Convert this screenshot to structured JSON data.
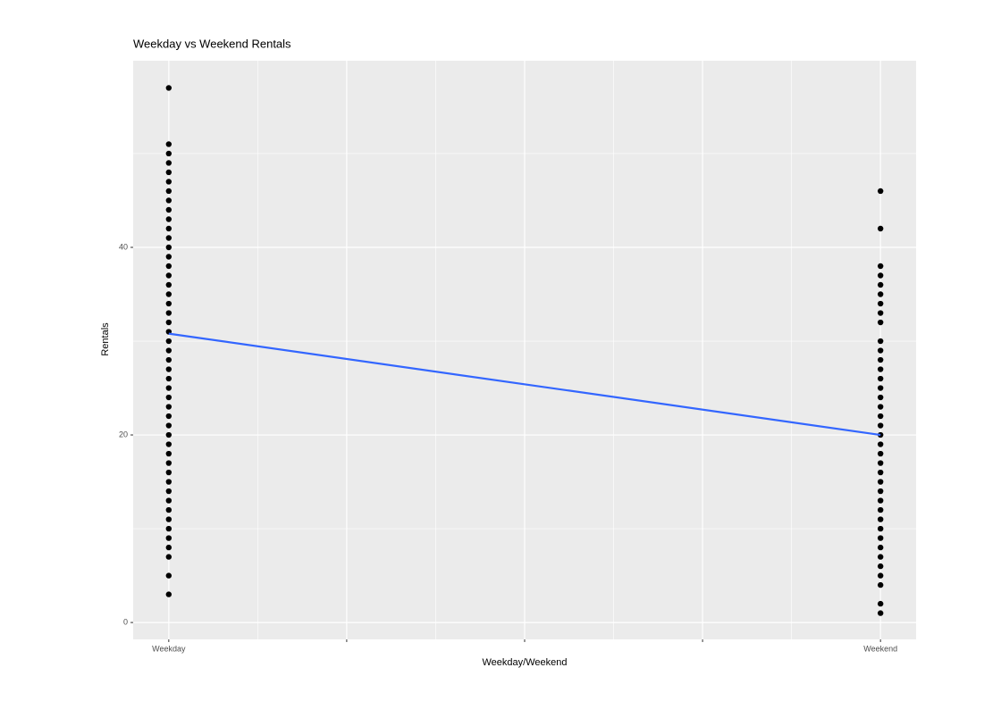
{
  "chart_data": {
    "type": "scatter",
    "title": "Weekday vs Weekend Rentals",
    "x_label": "Weekday/Weekend",
    "y_label": "Rentals",
    "xlim": [
      -0.05,
      1.05
    ],
    "ylim": [
      -1.8,
      59.9
    ],
    "xticks": [
      {
        "value": 0,
        "label": "Weekday"
      },
      {
        "value": 0.25,
        "label": null
      },
      {
        "value": 0.5,
        "label": null
      },
      {
        "value": 0.75,
        "label": null
      },
      {
        "value": 1,
        "label": "Weekend"
      }
    ],
    "yticks": [
      0,
      20,
      40
    ],
    "grid": true,
    "series": [
      {
        "color": "#000000",
        "x": [
          0,
          0,
          0,
          0,
          0,
          0,
          0,
          0,
          0,
          0,
          0,
          0,
          0,
          0,
          0,
          0,
          0,
          0,
          0,
          0,
          0,
          0,
          0,
          0,
          0,
          0,
          0,
          0,
          0,
          0,
          0,
          0,
          0,
          0,
          0,
          0,
          0,
          0,
          0,
          0,
          0,
          0,
          0,
          0,
          0,
          0,
          0,
          0
        ],
        "values": [
          3,
          5,
          7,
          8,
          9,
          10,
          11,
          12,
          13,
          14,
          15,
          16,
          17,
          18,
          19,
          20,
          21,
          22,
          23,
          24,
          25,
          26,
          27,
          28,
          29,
          30,
          31,
          32,
          33,
          34,
          35,
          36,
          37,
          38,
          39,
          40,
          41,
          42,
          43,
          44,
          45,
          46,
          47,
          48,
          49,
          50,
          51,
          57
        ]
      },
      {
        "color": "#000000",
        "x": [
          1,
          1,
          1,
          1,
          1,
          1,
          1,
          1,
          1,
          1,
          1,
          1,
          1,
          1,
          1,
          1,
          1,
          1,
          1,
          1,
          1,
          1,
          1,
          1,
          1,
          1,
          1,
          1,
          1,
          1,
          1,
          1,
          1,
          1,
          1,
          1,
          1,
          1
        ],
        "values": [
          1,
          2,
          4,
          5,
          6,
          7,
          8,
          9,
          10,
          11,
          12,
          13,
          14,
          15,
          16,
          17,
          18,
          19,
          20,
          21,
          22,
          23,
          24,
          25,
          26,
          27,
          28,
          29,
          30,
          32,
          33,
          34,
          35,
          36,
          37,
          38,
          42,
          46
        ]
      }
    ],
    "trend": {
      "color": "#3366ff",
      "x": [
        0,
        1
      ],
      "values": [
        30.8,
        20.0
      ]
    }
  }
}
